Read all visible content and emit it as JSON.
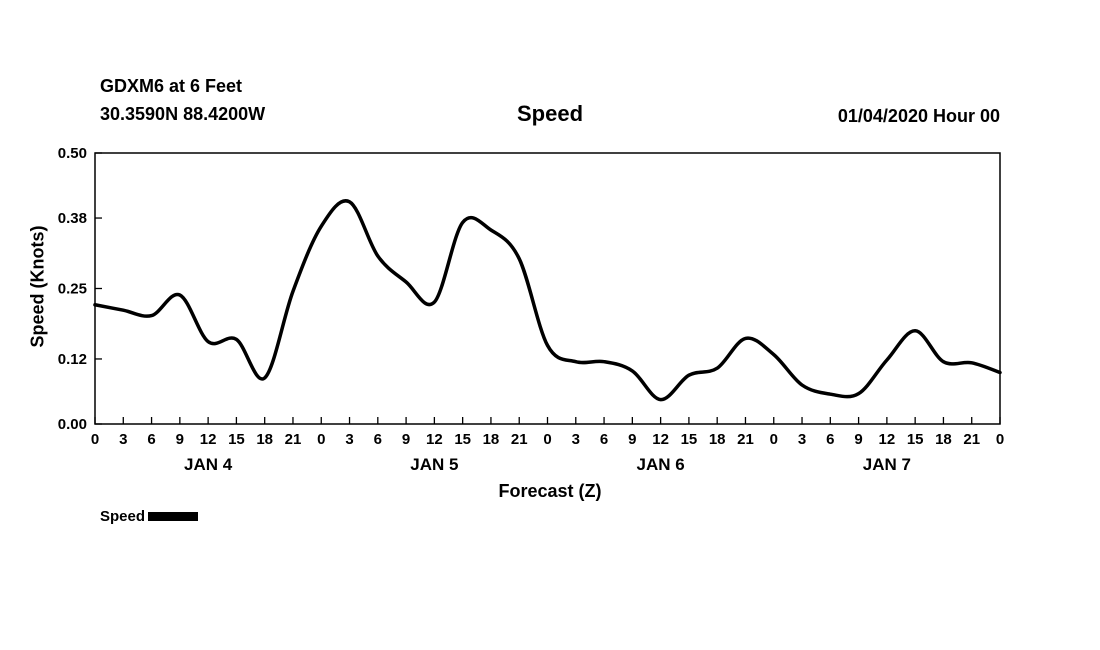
{
  "header": {
    "station": "GDXM6 at 6 Feet",
    "location": "30.3590N 88.4200W",
    "title": "Speed",
    "datetime": "01/04/2020 Hour 00"
  },
  "axes": {
    "ylabel": "Speed (Knots)",
    "xlabel": "Forecast (Z)"
  },
  "legend": {
    "label": "Speed"
  },
  "chart_data": {
    "type": "line",
    "title": "Speed",
    "xlabel": "Forecast (Z)",
    "ylabel": "Speed (Knots)",
    "xlim": [
      0,
      96
    ],
    "ylim": [
      0.0,
      0.5
    ],
    "grid": false,
    "legend_position": "bottom-left",
    "line_color": "#000000",
    "line_width": 3.5,
    "x_tick_hours": [
      0,
      3,
      6,
      9,
      12,
      15,
      18,
      21,
      24,
      27,
      30,
      33,
      36,
      39,
      42,
      45,
      48,
      51,
      54,
      57,
      60,
      63,
      66,
      69,
      72,
      75,
      78,
      81,
      84,
      87,
      90,
      93,
      96
    ],
    "x_tick_labels": [
      "0",
      "3",
      "6",
      "9",
      "12",
      "15",
      "18",
      "21",
      "0",
      "3",
      "6",
      "9",
      "12",
      "15",
      "18",
      "21",
      "0",
      "3",
      "6",
      "9",
      "12",
      "15",
      "18",
      "21",
      "0",
      "3",
      "6",
      "9",
      "12",
      "15",
      "18",
      "21",
      "0"
    ],
    "y_tick_values": [
      0.0,
      0.12,
      0.25,
      0.38,
      0.5
    ],
    "y_tick_labels": [
      "0.00",
      "0.12",
      "0.25",
      "0.38",
      "0.50"
    ],
    "day_labels": [
      {
        "hour": 12,
        "label": "JAN 4"
      },
      {
        "hour": 36,
        "label": "JAN 5"
      },
      {
        "hour": 60,
        "label": "JAN 6"
      },
      {
        "hour": 84,
        "label": "JAN 7"
      }
    ],
    "series": [
      {
        "name": "Speed",
        "x": [
          0,
          3,
          6,
          9,
          12,
          15,
          18,
          21,
          24,
          27,
          30,
          33,
          36,
          39,
          42,
          45,
          48,
          51,
          54,
          57,
          60,
          63,
          66,
          69,
          72,
          75,
          78,
          81,
          84,
          87,
          90,
          93,
          96
        ],
        "values": [
          0.22,
          0.21,
          0.2,
          0.238,
          0.152,
          0.156,
          0.085,
          0.245,
          0.365,
          0.41,
          0.31,
          0.262,
          0.225,
          0.372,
          0.358,
          0.305,
          0.145,
          0.115,
          0.115,
          0.098,
          0.045,
          0.09,
          0.103,
          0.158,
          0.128,
          0.072,
          0.055,
          0.056,
          0.118,
          0.172,
          0.115,
          0.113,
          0.095
        ]
      }
    ]
  }
}
